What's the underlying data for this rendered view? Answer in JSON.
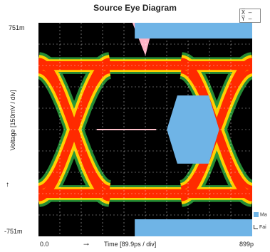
{
  "chart_data": {
    "type": "eye_diagram",
    "title": "Source Eye Diagram",
    "ylabel": "Voltage  [150mV / div]",
    "xlabel": "Time  [89.9ps / div]",
    "ylim_labels": {
      "top": "751m",
      "bottom": "-751m"
    },
    "xlim_labels": {
      "left": "0.0",
      "right": "899p"
    },
    "ylim": [
      -751,
      751
    ],
    "xlim": [
      0,
      899
    ],
    "grid": true,
    "mask_regions": [
      {
        "name": "top-mask",
        "shape": "rect",
        "x": [
          405,
          899
        ],
        "y": [
          640,
          751
        ]
      },
      {
        "name": "bottom-mask",
        "shape": "rect",
        "x": [
          405,
          899
        ],
        "y": [
          -751,
          -631
        ]
      },
      {
        "name": "center-eye-mask",
        "shape": "hexagon",
        "x": [
          540,
          760
        ],
        "y": [
          -240,
          240
        ]
      }
    ],
    "crosshair": {
      "x": [
        245,
        495
      ],
      "y": 0
    },
    "legend": [
      "Ma",
      "Fai"
    ],
    "colors": {
      "mask": "#6fb4e6",
      "trace_hot": "#ff2a00",
      "trace_warm": "#ffd000",
      "trace_cool": "#2a9a3a",
      "background": "#000000",
      "peak": "#ffb3c6"
    }
  },
  "ui": {
    "corner_lines": [
      "X̅  —",
      "Y̅  —"
    ]
  }
}
